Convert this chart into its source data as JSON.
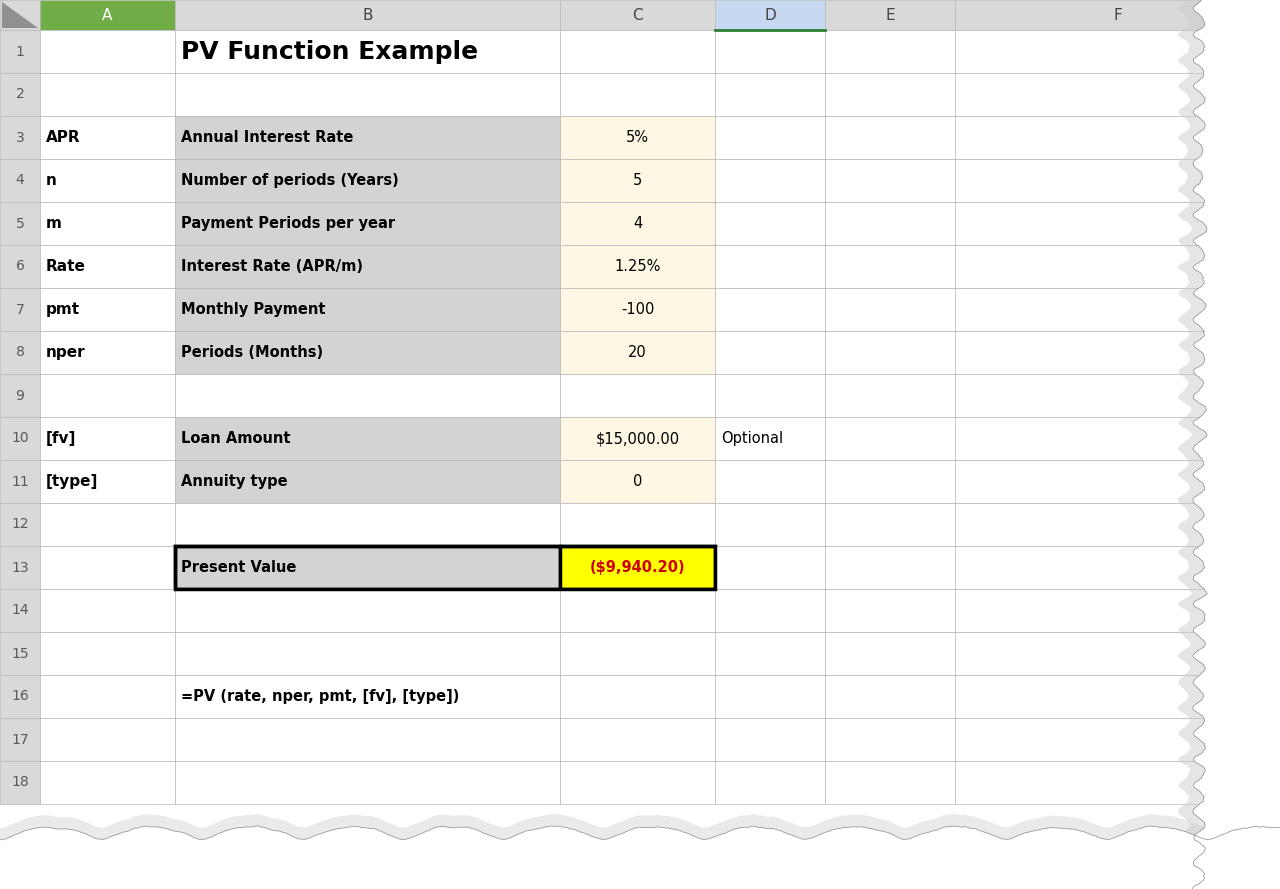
{
  "title": "PV Function Example",
  "col_headers": [
    "A",
    "B",
    "C",
    "D",
    "E",
    "F"
  ],
  "rows": {
    "3": {
      "a": "APR",
      "b": "Annual Interest Rate",
      "c": "5%",
      "b_bg": "#d3d3d3",
      "c_bg": "#fdf6e3"
    },
    "4": {
      "a": "n",
      "b": "Number of periods (Years)",
      "c": "5",
      "b_bg": "#d3d3d3",
      "c_bg": "#fdf6e3"
    },
    "5": {
      "a": "m",
      "b": "Payment Periods per year",
      "c": "4",
      "b_bg": "#d3d3d3",
      "c_bg": "#fdf6e3"
    },
    "6": {
      "a": "Rate",
      "b": "Interest Rate (APR/m)",
      "c": "1.25%",
      "b_bg": "#d3d3d3",
      "c_bg": "#fdf6e3"
    },
    "7": {
      "a": "pmt",
      "b": "Monthly Payment",
      "c": "-100",
      "b_bg": "#d3d3d3",
      "c_bg": "#fdf6e3"
    },
    "8": {
      "a": "nper",
      "b": "Periods (Months)",
      "c": "20",
      "b_bg": "#d3d3d3",
      "c_bg": "#fdf6e3"
    },
    "10": {
      "a": "[fv]",
      "b": "Loan Amount",
      "c": "$15,000.00",
      "b_bg": "#d3d3d3",
      "c_bg": "#fdf6e3",
      "d": "Optional"
    },
    "11": {
      "a": "[type]",
      "b": "Annuity type",
      "c": "0",
      "b_bg": "#d3d3d3",
      "c_bg": "#fdf6e3"
    },
    "13": {
      "a": "",
      "b": "Present Value",
      "c": "($9,940.20)",
      "b_bg": "#d3d3d3",
      "c_bg": "#ffff00",
      "border": true
    },
    "16": {
      "a": "",
      "b": "=PV (rate, nper, pmt, [fv], [type])",
      "c": "",
      "b_bg": "#ffffff",
      "c_bg": "#ffffff"
    }
  },
  "col_A_header_bg": "#70ad47",
  "col_D_header_bg": "#c6d9f1",
  "header_row_bg": "#d9d9d9",
  "grid_color": "#b8b8b8",
  "border_color": "#000000",
  "row_num_color": "#595959",
  "background": "#ffffff",
  "torn_shadow": "#aaaaaa"
}
